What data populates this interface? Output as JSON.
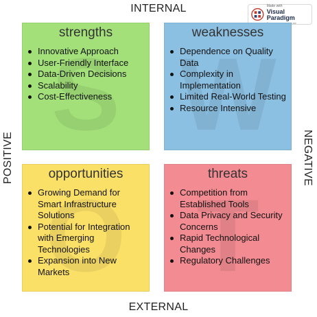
{
  "axes": {
    "top": "INTERNAL",
    "bottom": "EXTERNAL",
    "left": "POSITIVE",
    "right": "NEGATIVE"
  },
  "watermark": {
    "small": "Made with",
    "brand": "Visual Paradigm",
    "tagline": "For non-commercial use"
  },
  "quadrants": {
    "strengths": {
      "title": "strengths",
      "letter": "S",
      "color": "#a3e07a",
      "items": [
        "Innovative Approach",
        "User-Friendly Interface",
        "Data-Driven Decisions",
        "Scalability",
        "Cost-Effectiveness"
      ]
    },
    "weaknesses": {
      "title": "weaknesses",
      "letter": "W",
      "color": "#8cc0e2",
      "items": [
        "Dependence on Quality Data",
        "Complexity in Implementation",
        "Limited Real-World Testing",
        "Resource Intensive"
      ]
    },
    "opportunities": {
      "title": "opportunities",
      "letter": "O",
      "color": "#fbe068",
      "items": [
        "Growing Demand for Smart Infrastructure Solutions",
        "Potential for Integration with Emerging Technologies",
        "Expansion into New Markets"
      ]
    },
    "threats": {
      "title": "threats",
      "letter": "T",
      "color": "#f28b92",
      "items": [
        "Competition from Established Tools",
        "Data Privacy and Security Concerns",
        "Rapid Technological Changes",
        "Regulatory Challenges"
      ]
    }
  }
}
